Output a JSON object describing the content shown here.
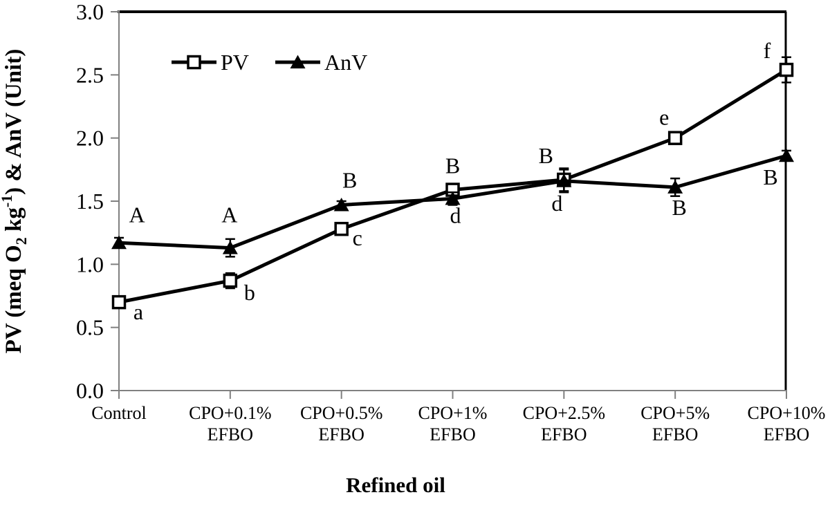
{
  "chart_data": {
    "type": "line",
    "title": "",
    "xlabel": "Refined oil",
    "ylabel_plain": "PV (meq O2 kg-1) & AnV (Unit)",
    "ylabel_parts": [
      {
        "text": "PV (meq O",
        "style": "normal"
      },
      {
        "text": "2",
        "style": "sub"
      },
      {
        "text": " kg",
        "style": "normal"
      },
      {
        "text": "-1",
        "style": "sup"
      },
      {
        "text": ") & AnV (Unit)",
        "style": "normal"
      }
    ],
    "ylim": [
      0.0,
      3.0
    ],
    "ytick_interval": 0.5,
    "yticks": [
      "0.0",
      "0.5",
      "1.0",
      "1.5",
      "2.0",
      "2.5",
      "3.0"
    ],
    "grid": false,
    "axis_color": "#808080",
    "line_color": "#000000",
    "legend": {
      "position": "top-left-inside",
      "items": [
        "PV",
        "AnV"
      ]
    },
    "categories": [
      [
        "Control"
      ],
      [
        "CPO+0.1%",
        "EFBO"
      ],
      [
        "CPO+0.5%",
        "EFBO"
      ],
      [
        "CPO+1%",
        "EFBO"
      ],
      [
        "CPO+2.5%",
        "EFBO"
      ],
      [
        "CPO+5%",
        "EFBO"
      ],
      [
        "CPO+10%",
        "EFBO"
      ]
    ],
    "series": [
      {
        "name": "PV",
        "marker": "open-square",
        "color": "#000000",
        "values": [
          0.7,
          0.87,
          1.28,
          1.59,
          1.67,
          2.0,
          2.54
        ],
        "errors": [
          0.03,
          0.06,
          0.03,
          0.04,
          0.09,
          0.03,
          0.1
        ],
        "point_labels": [
          "a",
          "b",
          "c",
          "d",
          "d",
          "e",
          "f"
        ],
        "label_offsets": [
          [
            28,
            14
          ],
          [
            28,
            17
          ],
          [
            23,
            13
          ],
          [
            4,
            37
          ],
          [
            -10,
            34
          ],
          [
            -16,
            -30
          ],
          [
            -28,
            -28
          ]
        ]
      },
      {
        "name": "AnV",
        "marker": "filled-triangle",
        "color": "#000000",
        "values": [
          1.17,
          1.13,
          1.47,
          1.52,
          1.66,
          1.61,
          1.86
        ],
        "errors": [
          0.04,
          0.07,
          0.03,
          0.05,
          0.09,
          0.07,
          0.04
        ],
        "point_labels": [
          "A",
          "A",
          "B",
          "B",
          "B",
          "B",
          "B"
        ],
        "label_offsets": [
          [
            26,
            -41
          ],
          [
            -1,
            -48
          ],
          [
            12,
            -36
          ],
          [
            0,
            -48
          ],
          [
            -26,
            -37
          ],
          [
            6,
            29
          ],
          [
            -23,
            31
          ]
        ]
      }
    ]
  }
}
